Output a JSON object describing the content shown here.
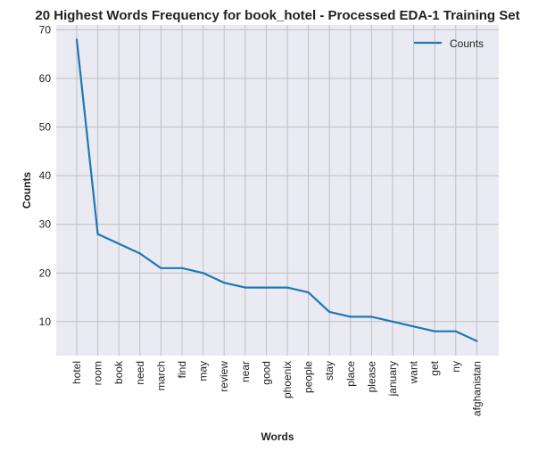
{
  "chart_data": {
    "type": "line",
    "title": "20 Highest Words Frequency for book_hotel - Processed EDA-1 Training Set",
    "xlabel": "Words",
    "ylabel": "Counts",
    "categories": [
      "hotel",
      "room",
      "book",
      "need",
      "march",
      "find",
      "may",
      "review",
      "near",
      "good",
      "phoenix",
      "people",
      "stay",
      "place",
      "please",
      "january",
      "want",
      "get",
      "ny",
      "afghanistan"
    ],
    "series": [
      {
        "name": "Counts",
        "values": [
          68,
          28,
          26,
          24,
          21,
          21,
          20,
          18,
          17,
          17,
          17,
          16,
          12,
          11,
          11,
          10,
          9,
          8,
          8,
          6
        ]
      }
    ],
    "yticks": [
      10,
      20,
      30,
      40,
      50,
      60,
      70
    ],
    "ylim": [
      3,
      71
    ],
    "grid": true,
    "legend_position": "top-right",
    "colors": {
      "line": "#1f77b4",
      "plot_background": "#eaeaf2",
      "grid": "#c0c0c0"
    }
  }
}
